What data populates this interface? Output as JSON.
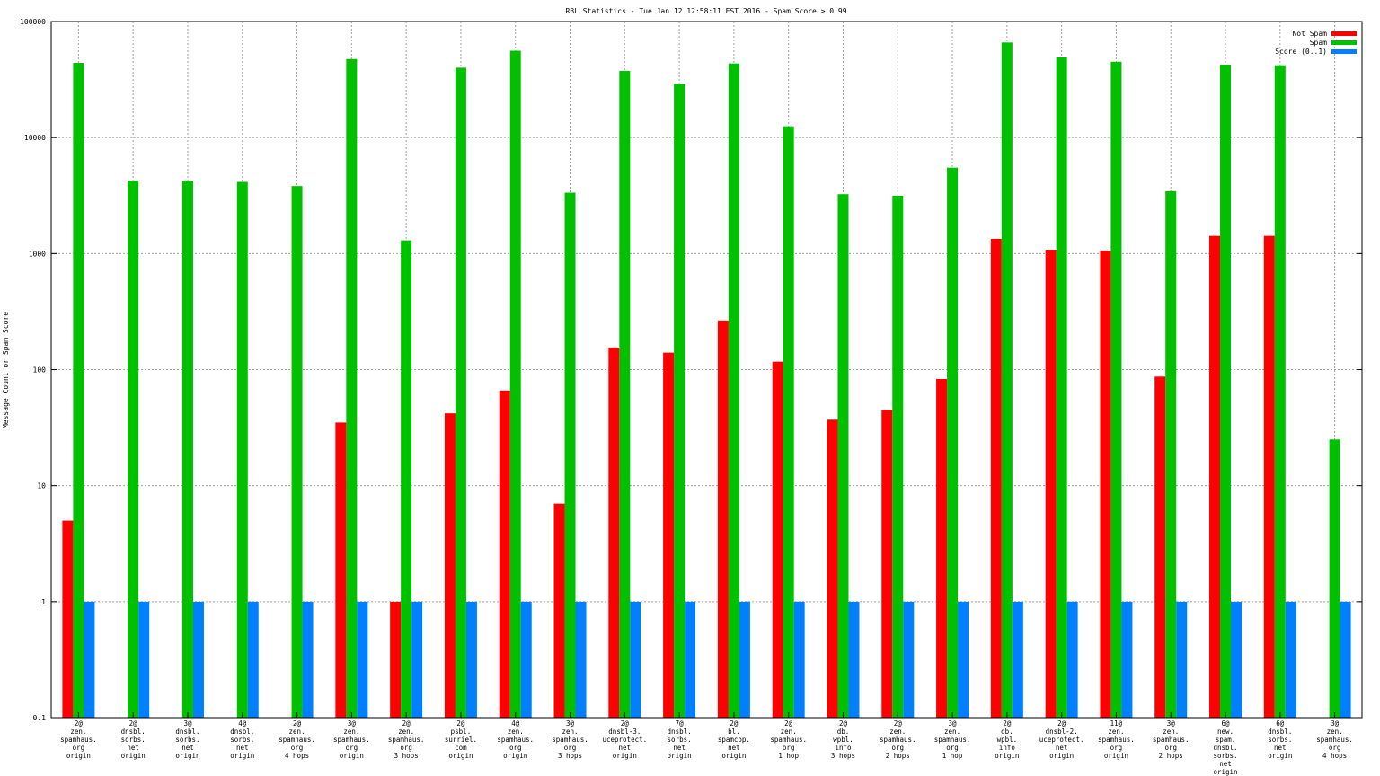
{
  "chart_data": {
    "type": "bar",
    "title": "RBL Statistics - Tue Jan 12 12:58:11 EST 2016 - Spam Score > 0.99",
    "xlabel": "",
    "ylabel": "Message Count or Spam Score",
    "yscale": "log",
    "ylim": [
      0.1,
      100000
    ],
    "yticks": [
      {
        "value": 0.1,
        "label": "0.1"
      },
      {
        "value": 1,
        "label": "1"
      },
      {
        "value": 10,
        "label": "10"
      },
      {
        "value": 100,
        "label": "100"
      },
      {
        "value": 1000,
        "label": "1000"
      },
      {
        "value": 10000,
        "label": "10000"
      },
      {
        "value": 100000,
        "label": "100000"
      }
    ],
    "grid": true,
    "legend_position": "top-right",
    "categories": [
      [
        "2@",
        "zen.",
        "spamhaus.",
        "org",
        "origin"
      ],
      [
        "2@",
        "dnsbl.",
        "sorbs.",
        "net",
        "origin"
      ],
      [
        "3@",
        "dnsbl.",
        "sorbs.",
        "net",
        "origin"
      ],
      [
        "4@",
        "dnsbl.",
        "sorbs.",
        "net",
        "origin"
      ],
      [
        "2@",
        "zen.",
        "spamhaus.",
        "org",
        "4 hops"
      ],
      [
        "3@",
        "zen.",
        "spamhaus.",
        "org",
        "origin"
      ],
      [
        "2@",
        "zen.",
        "spamhaus.",
        "org",
        "3 hops"
      ],
      [
        "2@",
        "psbl.",
        "surriel.",
        "com",
        "origin"
      ],
      [
        "4@",
        "zen.",
        "spamhaus.",
        "org",
        "origin"
      ],
      [
        "3@",
        "zen.",
        "spamhaus.",
        "org",
        "3 hops"
      ],
      [
        "2@",
        "dnsbl-3.",
        "uceprotect.",
        "net",
        "origin"
      ],
      [
        "7@",
        "dnsbl.",
        "sorbs.",
        "net",
        "origin"
      ],
      [
        "2@",
        "bl.",
        "spamcop.",
        "net",
        "origin"
      ],
      [
        "2@",
        "zen.",
        "spamhaus.",
        "org",
        "1 hop"
      ],
      [
        "2@",
        "db.",
        "wpbl.",
        "info",
        "3 hops"
      ],
      [
        "2@",
        "zen.",
        "spamhaus.",
        "org",
        "2 hops"
      ],
      [
        "3@",
        "zen.",
        "spamhaus.",
        "org",
        "1 hop"
      ],
      [
        "2@",
        "db.",
        "wpbl.",
        "info",
        "origin"
      ],
      [
        "2@",
        "dnsbl-2.",
        "uceprotect.",
        "net",
        "origin"
      ],
      [
        "11@",
        "zen.",
        "spamhaus.",
        "org",
        "origin"
      ],
      [
        "3@",
        "zen.",
        "spamhaus.",
        "org",
        "2 hops"
      ],
      [
        "6@",
        "new.",
        "spam.",
        "dnsbl.",
        "sorbs.",
        "net",
        "origin"
      ],
      [
        "6@",
        "dnsbl.",
        "sorbs.",
        "net",
        "origin"
      ],
      [
        "3@",
        "zen.",
        "spamhaus.",
        "org",
        "4 hops"
      ]
    ],
    "series": [
      {
        "name": "Not Spam",
        "color": "#ff0000",
        "values": [
          5,
          0,
          0,
          0,
          0,
          35,
          1,
          42,
          66,
          7,
          155,
          140,
          265,
          117,
          37,
          45,
          83,
          1340,
          1080,
          1060,
          87,
          1420,
          1420,
          0
        ]
      },
      {
        "name": "Spam",
        "color": "#00c000",
        "values": [
          44000,
          4250,
          4250,
          4150,
          3820,
          47500,
          1300,
          40000,
          56000,
          3350,
          37500,
          29000,
          43500,
          12500,
          3250,
          3150,
          5500,
          66000,
          49000,
          45000,
          3450,
          42500,
          42000,
          25
        ]
      },
      {
        "name": "Score (0..1)",
        "color": "#0080ff",
        "values": [
          1,
          1,
          1,
          1,
          1,
          1,
          1,
          1,
          1,
          1,
          1,
          1,
          1,
          1,
          1,
          1,
          1,
          1,
          1,
          1,
          1,
          1,
          1,
          1
        ]
      }
    ]
  }
}
